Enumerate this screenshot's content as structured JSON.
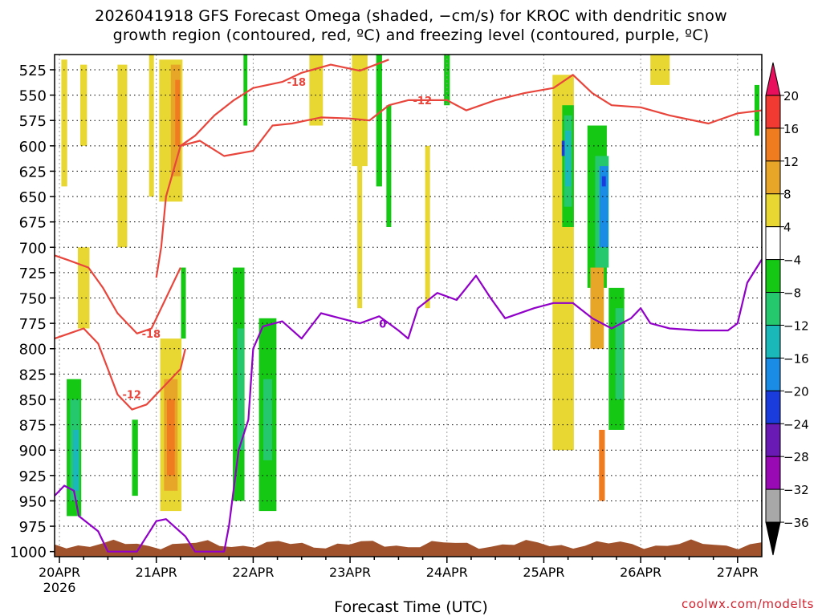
{
  "title_line1": "2026041918 GFS Forecast Omega (shaded, −cm/s) for KROC with dendritic snow",
  "title_line2": "growth region (contoured, red, ºC) and freezing level (contoured, purple, ºC)",
  "credit": "coolwx.com/modelts",
  "chart_data": {
    "type": "heatmap",
    "title": "2026041918 GFS Forecast Omega (shaded, −cm/s) for KROC with dendritic snow growth region (contoured, red, ºC) and freezing level (contoured, purple, ºC)",
    "xlabel": "Forecast Time (UTC)",
    "x_ticks": [
      {
        "label": "20APR",
        "sub": "2026",
        "day": 0
      },
      {
        "label": "21APR",
        "day": 1
      },
      {
        "label": "22APR",
        "day": 2
      },
      {
        "label": "23APR",
        "day": 3
      },
      {
        "label": "24APR",
        "day": 4
      },
      {
        "label": "25APR",
        "day": 5
      },
      {
        "label": "26APR",
        "day": 6
      },
      {
        "label": "27APR",
        "day": 7
      }
    ],
    "xlim_days": [
      -0.05,
      7.25
    ],
    "y_ticks": [
      525,
      550,
      575,
      600,
      625,
      650,
      675,
      700,
      725,
      750,
      775,
      800,
      825,
      850,
      875,
      900,
      925,
      950,
      975,
      1000
    ],
    "ylim": [
      1005,
      510
    ],
    "colorbar": {
      "labels": [
        "20",
        "16",
        "12",
        "8",
        "4",
        "−4",
        "−8",
        "−12",
        "−16",
        "−20",
        "−24",
        "−28",
        "−32",
        "−36"
      ],
      "colors": [
        "#e8105c",
        "#f03a32",
        "#f07c20",
        "#e8a628",
        "#e8d632",
        "#ffffff",
        "#14c814",
        "#26c86e",
        "#1ab8b8",
        "#1a8ce6",
        "#1a3cdc",
        "#6a1ab4",
        "#9a0ab4",
        "#a8a8a8",
        "#000000"
      ]
    },
    "omega_cells": [
      {
        "t": 0.05,
        "p1": 515,
        "p2": 640,
        "w": 0.06,
        "c": "#e8d632"
      },
      {
        "t": 0.25,
        "p1": 520,
        "p2": 600,
        "w": 0.07,
        "c": "#e8d632"
      },
      {
        "t": 0.25,
        "p1": 700,
        "p2": 780,
        "w": 0.12,
        "c": "#e8d632"
      },
      {
        "t": 0.15,
        "p1": 830,
        "p2": 965,
        "w": 0.15,
        "c": "#14c814"
      },
      {
        "t": 0.16,
        "p1": 850,
        "p2": 950,
        "w": 0.1,
        "c": "#26c86e"
      },
      {
        "t": 0.17,
        "p1": 880,
        "p2": 940,
        "w": 0.06,
        "c": "#1ab8b8"
      },
      {
        "t": 0.65,
        "p1": 520,
        "p2": 700,
        "w": 0.1,
        "c": "#e8d632"
      },
      {
        "t": 0.78,
        "p1": 870,
        "p2": 945,
        "w": 0.06,
        "c": "#14c814"
      },
      {
        "t": 1.15,
        "p1": 515,
        "p2": 655,
        "w": 0.24,
        "c": "#e8d632"
      },
      {
        "t": 1.2,
        "p1": 520,
        "p2": 630,
        "w": 0.1,
        "c": "#e8a628"
      },
      {
        "t": 1.22,
        "p1": 535,
        "p2": 600,
        "w": 0.05,
        "c": "#f07c20"
      },
      {
        "t": 1.15,
        "p1": 790,
        "p2": 960,
        "w": 0.22,
        "c": "#e8d632"
      },
      {
        "t": 1.15,
        "p1": 830,
        "p2": 940,
        "w": 0.14,
        "c": "#e8a628"
      },
      {
        "t": 1.15,
        "p1": 850,
        "p2": 925,
        "w": 0.08,
        "c": "#f07c20"
      },
      {
        "t": 1.28,
        "p1": 720,
        "p2": 790,
        "w": 0.05,
        "c": "#14c814"
      },
      {
        "t": 0.95,
        "p1": 510,
        "p2": 650,
        "w": 0.05,
        "c": "#e8d632"
      },
      {
        "t": 1.85,
        "p1": 720,
        "p2": 950,
        "w": 0.12,
        "c": "#14c814"
      },
      {
        "t": 1.87,
        "p1": 780,
        "p2": 900,
        "w": 0.07,
        "c": "#26c86e"
      },
      {
        "t": 2.15,
        "p1": 770,
        "p2": 960,
        "w": 0.18,
        "c": "#14c814"
      },
      {
        "t": 2.15,
        "p1": 830,
        "p2": 910,
        "w": 0.09,
        "c": "#26c86e"
      },
      {
        "t": 1.92,
        "p1": 510,
        "p2": 580,
        "w": 0.04,
        "c": "#14c814"
      },
      {
        "t": 2.65,
        "p1": 510,
        "p2": 580,
        "w": 0.14,
        "c": "#e8d632"
      },
      {
        "t": 3.1,
        "p1": 510,
        "p2": 620,
        "w": 0.16,
        "c": "#e8d632"
      },
      {
        "t": 3.1,
        "p1": 610,
        "p2": 760,
        "w": 0.05,
        "c": "#e8d632"
      },
      {
        "t": 3.3,
        "p1": 510,
        "p2": 640,
        "w": 0.06,
        "c": "#14c814"
      },
      {
        "t": 3.4,
        "p1": 560,
        "p2": 680,
        "w": 0.05,
        "c": "#14c814"
      },
      {
        "t": 3.8,
        "p1": 600,
        "p2": 760,
        "w": 0.05,
        "c": "#e8d632"
      },
      {
        "t": 4.0,
        "p1": 510,
        "p2": 560,
        "w": 0.06,
        "c": "#14c814"
      },
      {
        "t": 5.2,
        "p1": 530,
        "p2": 900,
        "w": 0.22,
        "c": "#e8d632"
      },
      {
        "t": 5.25,
        "p1": 560,
        "p2": 680,
        "w": 0.12,
        "c": "#14c814"
      },
      {
        "t": 5.25,
        "p1": 570,
        "p2": 660,
        "w": 0.08,
        "c": "#26c86e"
      },
      {
        "t": 5.25,
        "p1": 585,
        "p2": 640,
        "w": 0.06,
        "c": "#1ab8b8"
      },
      {
        "t": 5.2,
        "p1": 595,
        "p2": 610,
        "w": 0.03,
        "c": "#1a3cdc"
      },
      {
        "t": 5.55,
        "p1": 580,
        "p2": 740,
        "w": 0.2,
        "c": "#14c814"
      },
      {
        "t": 5.6,
        "p1": 610,
        "p2": 720,
        "w": 0.14,
        "c": "#26c86e"
      },
      {
        "t": 5.62,
        "p1": 620,
        "p2": 700,
        "w": 0.09,
        "c": "#1a8ce6"
      },
      {
        "t": 5.62,
        "p1": 630,
        "p2": 640,
        "w": 0.04,
        "c": "#1a3cdc"
      },
      {
        "t": 5.75,
        "p1": 740,
        "p2": 880,
        "w": 0.16,
        "c": "#14c814"
      },
      {
        "t": 5.78,
        "p1": 760,
        "p2": 850,
        "w": 0.08,
        "c": "#26c86e"
      },
      {
        "t": 5.55,
        "p1": 720,
        "p2": 800,
        "w": 0.14,
        "c": "#e8a628"
      },
      {
        "t": 5.6,
        "p1": 880,
        "p2": 950,
        "w": 0.06,
        "c": "#f07c20"
      },
      {
        "t": 6.2,
        "p1": 510,
        "p2": 540,
        "w": 0.2,
        "c": "#e8d632"
      },
      {
        "t": 7.2,
        "p1": 540,
        "p2": 590,
        "w": 0.05,
        "c": "#14c814"
      }
    ],
    "dendritic_contours": [
      {
        "label": "-18",
        "points": [
          [
            1.25,
            600
          ],
          [
            1.4,
            590
          ],
          [
            1.6,
            570
          ],
          [
            1.8,
            555
          ],
          [
            2.0,
            543
          ],
          [
            2.3,
            537
          ],
          [
            2.5,
            528
          ],
          [
            2.8,
            520
          ],
          [
            3.1,
            526
          ],
          [
            3.4,
            515
          ]
        ]
      },
      {
        "label": "-12",
        "points": [
          [
            1.0,
            730
          ],
          [
            1.05,
            700
          ],
          [
            1.1,
            650
          ],
          [
            1.25,
            600
          ],
          [
            1.45,
            595
          ],
          [
            1.7,
            610
          ],
          [
            2.0,
            605
          ],
          [
            2.2,
            580
          ],
          [
            2.4,
            578
          ],
          [
            2.7,
            572
          ],
          [
            3.0,
            573
          ],
          [
            3.2,
            575
          ],
          [
            3.4,
            560
          ],
          [
            3.6,
            555
          ],
          [
            4.0,
            555
          ],
          [
            4.2,
            565
          ],
          [
            4.5,
            555
          ],
          [
            4.8,
            548
          ],
          [
            5.1,
            543
          ],
          [
            5.3,
            530
          ],
          [
            5.5,
            548
          ],
          [
            5.7,
            560
          ],
          [
            6.0,
            562
          ],
          [
            6.3,
            570
          ],
          [
            6.7,
            578
          ],
          [
            7.0,
            568
          ],
          [
            7.25,
            565
          ]
        ]
      },
      {
        "label": "-18",
        "points": [
          [
            -0.05,
            708
          ],
          [
            0.1,
            713
          ],
          [
            0.3,
            720
          ],
          [
            0.45,
            740
          ],
          [
            0.6,
            765
          ],
          [
            0.8,
            785
          ],
          [
            0.95,
            780
          ],
          [
            1.05,
            760
          ],
          [
            1.2,
            730
          ],
          [
            1.25,
            720
          ]
        ]
      },
      {
        "label": "-12",
        "points": [
          [
            -0.05,
            790
          ],
          [
            0.1,
            785
          ],
          [
            0.25,
            780
          ],
          [
            0.4,
            795
          ],
          [
            0.5,
            820
          ],
          [
            0.6,
            845
          ],
          [
            0.75,
            860
          ],
          [
            0.9,
            855
          ],
          [
            1.1,
            835
          ],
          [
            1.25,
            820
          ],
          [
            1.3,
            800
          ]
        ]
      }
    ],
    "freezing_level": {
      "label": "0",
      "points": [
        [
          -0.05,
          945
        ],
        [
          0.05,
          935
        ],
        [
          0.15,
          940
        ],
        [
          0.2,
          965
        ],
        [
          0.4,
          980
        ],
        [
          0.5,
          1000
        ],
        [
          0.8,
          1000
        ],
        [
          1.0,
          970
        ],
        [
          1.1,
          968
        ],
        [
          1.3,
          985
        ],
        [
          1.4,
          1000
        ],
        [
          1.7,
          1000
        ],
        [
          1.75,
          975
        ],
        [
          1.85,
          900
        ],
        [
          1.95,
          870
        ],
        [
          2.0,
          800
        ],
        [
          2.1,
          778
        ],
        [
          2.3,
          773
        ],
        [
          2.5,
          790
        ],
        [
          2.7,
          765
        ],
        [
          2.9,
          770
        ],
        [
          3.1,
          775
        ],
        [
          3.3,
          768
        ],
        [
          3.5,
          782
        ],
        [
          3.6,
          790
        ],
        [
          3.7,
          760
        ],
        [
          3.9,
          745
        ],
        [
          4.1,
          752
        ],
        [
          4.2,
          740
        ],
        [
          4.3,
          728
        ],
        [
          4.45,
          750
        ],
        [
          4.6,
          770
        ],
        [
          4.9,
          760
        ],
        [
          5.1,
          755
        ],
        [
          5.3,
          755
        ],
        [
          5.5,
          770
        ],
        [
          5.7,
          780
        ],
        [
          5.9,
          770
        ],
        [
          6.0,
          760
        ],
        [
          6.1,
          775
        ],
        [
          6.3,
          780
        ],
        [
          6.6,
          782
        ],
        [
          6.9,
          782
        ],
        [
          7.0,
          775
        ],
        [
          7.1,
          735
        ],
        [
          7.25,
          712
        ]
      ]
    }
  }
}
